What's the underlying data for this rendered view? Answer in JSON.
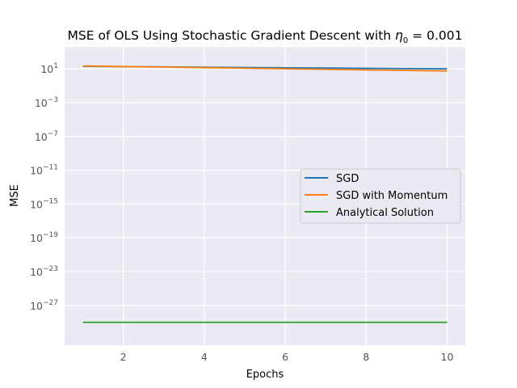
{
  "chart_data": {
    "type": "line",
    "title": "MSE of OLS Using Stochastic Gradient Descent with η₀ = 0.001",
    "xlabel": "Epochs",
    "ylabel": "MSE",
    "xlim": [
      0.55,
      10.45
    ],
    "ylim_log10": [
      -31.7,
      3.6
    ],
    "y_scale": "log",
    "grid": true,
    "legend_placement": "center-right",
    "x_ticks": [
      2,
      4,
      6,
      8,
      10
    ],
    "y_ticks": [
      {
        "exp": 1,
        "label": "10^1"
      },
      {
        "exp": -3,
        "label": "10^-3"
      },
      {
        "exp": -7,
        "label": "10^-7"
      },
      {
        "exp": -11,
        "label": "10^-11"
      },
      {
        "exp": -15,
        "label": "10^-15"
      },
      {
        "exp": -19,
        "label": "10^-19"
      },
      {
        "exp": -23,
        "label": "10^-23"
      },
      {
        "exp": -27,
        "label": "10^-27"
      }
    ],
    "x": [
      1,
      2,
      3,
      4,
      5,
      6,
      7,
      8,
      9,
      10
    ],
    "series": [
      {
        "name": "SGD",
        "color": "#1f77b4",
        "values": [
          20.0,
          18.5,
          17.0,
          15.7,
          14.5,
          13.4,
          12.4,
          11.5,
          10.7,
          10.0
        ]
      },
      {
        "name": "SGD with Momentum",
        "color": "#ff7f0e",
        "values": [
          22.0,
          18.9,
          16.2,
          13.9,
          11.9,
          10.2,
          8.8,
          7.5,
          6.5,
          5.6
        ]
      },
      {
        "name": "Analytical Solution",
        "color": "#2ca02c",
        "values": [
          1e-29,
          1e-29,
          1e-29,
          1e-29,
          1e-29,
          1e-29,
          1e-29,
          1e-29,
          1e-29,
          1e-29
        ]
      }
    ]
  }
}
